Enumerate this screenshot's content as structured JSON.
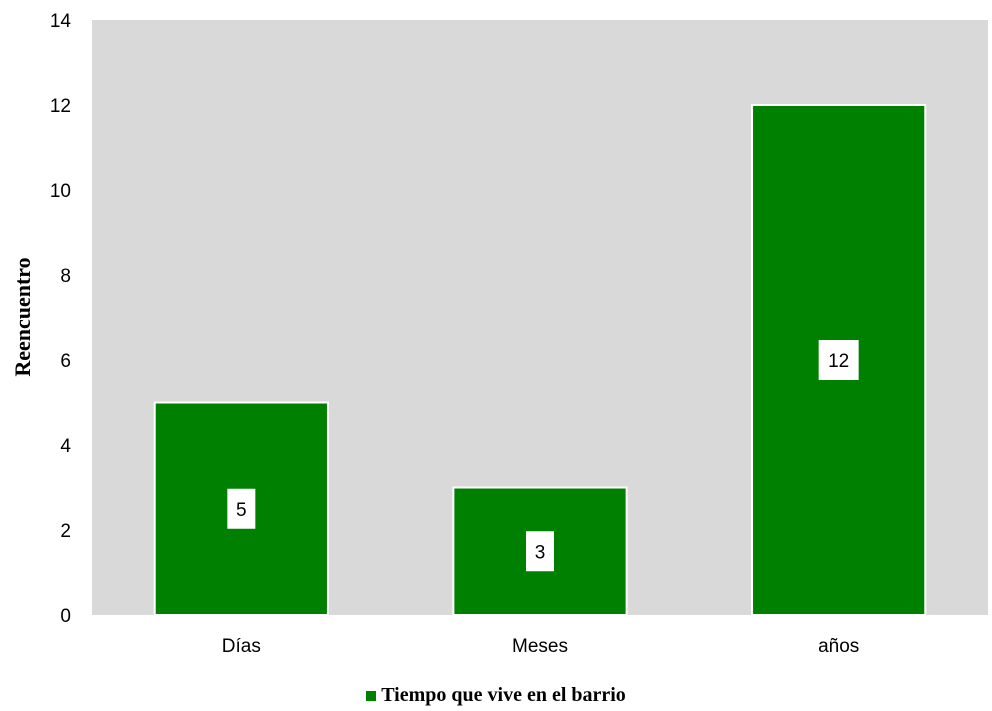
{
  "chart_data": {
    "type": "bar",
    "categories": [
      "Días",
      "Meses",
      "años"
    ],
    "series": [
      {
        "name": "Tiempo que vive en el barrio",
        "values": [
          5,
          3,
          12
        ],
        "color": "#008000"
      }
    ],
    "data_labels": [
      "5",
      "3",
      "12"
    ],
    "ylabel": "Reencuentro",
    "xlabel": "",
    "ylim": [
      0,
      14
    ],
    "yticks": [
      0,
      2,
      4,
      6,
      8,
      10,
      12,
      14
    ],
    "grid": false,
    "plot_background": "#d9d9d9",
    "legend_position": "bottom"
  }
}
